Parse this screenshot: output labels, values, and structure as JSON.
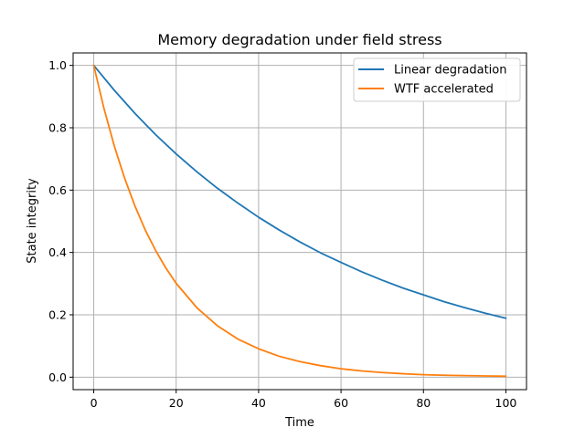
{
  "chart_data": {
    "type": "line",
    "title": "Memory degradation under field stress",
    "xlabel": "Time",
    "ylabel": "State integrity",
    "xlim": [
      -5,
      105
    ],
    "ylim": [
      -0.04,
      1.04
    ],
    "xticks": [
      0,
      20,
      40,
      60,
      80,
      100
    ],
    "xtick_labels": [
      "0",
      "20",
      "40",
      "60",
      "80",
      "100"
    ],
    "yticks": [
      0.0,
      0.2,
      0.4,
      0.6,
      0.8,
      1.0
    ],
    "ytick_labels": [
      "0.0",
      "0.2",
      "0.4",
      "0.6",
      "0.8",
      "1.0"
    ],
    "grid": true,
    "legend_position": "top-right",
    "series": [
      {
        "name": "Linear degradation",
        "color": "#1f77b4",
        "x": [
          0,
          5,
          10,
          15,
          20,
          25,
          30,
          35,
          40,
          45,
          50,
          55,
          60,
          65,
          70,
          75,
          80,
          85,
          90,
          95,
          100
        ],
        "y": [
          1.0,
          0.92,
          0.846,
          0.778,
          0.716,
          0.659,
          0.606,
          0.558,
          0.513,
          0.472,
          0.434,
          0.399,
          0.368,
          0.338,
          0.311,
          0.286,
          0.264,
          0.242,
          0.223,
          0.205,
          0.189
        ]
      },
      {
        "name": "WTF accelerated",
        "color": "#ff7f0e",
        "x": [
          0,
          2.5,
          5,
          7.5,
          10,
          12.5,
          15,
          17.5,
          20,
          25,
          30,
          35,
          40,
          45,
          50,
          55,
          60,
          65,
          70,
          75,
          80,
          85,
          90,
          95,
          100
        ],
        "y": [
          1.0,
          0.861,
          0.741,
          0.638,
          0.549,
          0.472,
          0.407,
          0.35,
          0.301,
          0.223,
          0.165,
          0.122,
          0.091,
          0.067,
          0.05,
          0.037,
          0.027,
          0.02,
          0.015,
          0.011,
          0.008,
          0.006,
          0.005,
          0.004,
          0.003
        ]
      }
    ]
  }
}
